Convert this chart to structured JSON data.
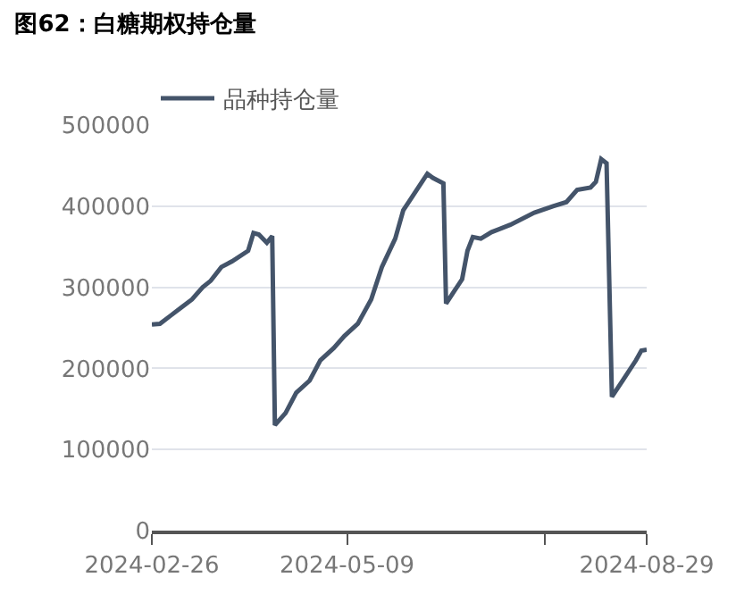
{
  "chart_data": {
    "type": "line",
    "title": "图62：白糖期权持仓量",
    "x": [
      "2024-02-26",
      "2024-02-29",
      "2024-03-04",
      "2024-03-08",
      "2024-03-12",
      "2024-03-16",
      "2024-03-19",
      "2024-03-23",
      "2024-03-27",
      "2024-04-02",
      "2024-04-04",
      "2024-04-06",
      "2024-04-09",
      "2024-04-11",
      "2024-04-12",
      "2024-04-16",
      "2024-04-20",
      "2024-04-25",
      "2024-04-29",
      "2024-05-04",
      "2024-05-08",
      "2024-05-13",
      "2024-05-18",
      "2024-05-22",
      "2024-05-27",
      "2024-05-30",
      "2024-06-01",
      "2024-06-06",
      "2024-06-08",
      "2024-06-10",
      "2024-06-14",
      "2024-06-15",
      "2024-06-18",
      "2024-06-21",
      "2024-06-23",
      "2024-06-25",
      "2024-06-28",
      "2024-07-02",
      "2024-07-09",
      "2024-07-18",
      "2024-07-25",
      "2024-07-30",
      "2024-08-03",
      "2024-08-08",
      "2024-08-10",
      "2024-08-12",
      "2024-08-14",
      "2024-08-16",
      "2024-08-20",
      "2024-08-25",
      "2024-08-27",
      "2024-08-29"
    ],
    "series": [
      {
        "name": "品种持仓量",
        "color": "#44546a",
        "values": [
          254000,
          255000,
          265000,
          275000,
          285000,
          300000,
          308000,
          325000,
          332000,
          345000,
          367000,
          365000,
          355000,
          363000,
          130000,
          145000,
          170000,
          185000,
          210000,
          225000,
          240000,
          255000,
          285000,
          325000,
          360000,
          395000,
          405000,
          430000,
          440000,
          435000,
          428000,
          280000,
          295000,
          310000,
          345000,
          362000,
          360000,
          368000,
          377000,
          392000,
          400000,
          405000,
          420000,
          423000,
          430000,
          458000,
          453000,
          165000,
          185000,
          210000,
          222000,
          223000
        ]
      }
    ],
    "xlim": [
      "2024-02-26",
      "2024-08-29"
    ],
    "xticks": [
      {
        "value": "2024-02-26",
        "label": "2024-02-26"
      },
      {
        "value": "2024-05-09",
        "label": "2024-05-09"
      },
      {
        "value": "2024-07-22",
        "label": null
      },
      {
        "value": "2024-08-29",
        "label": "2024-08-29"
      }
    ],
    "ylim": [
      0,
      500000
    ],
    "yticks": [
      0,
      100000,
      200000,
      300000,
      400000,
      500000
    ],
    "grid": "y",
    "legend": "top left",
    "marker": "none",
    "line_style": "solid"
  }
}
